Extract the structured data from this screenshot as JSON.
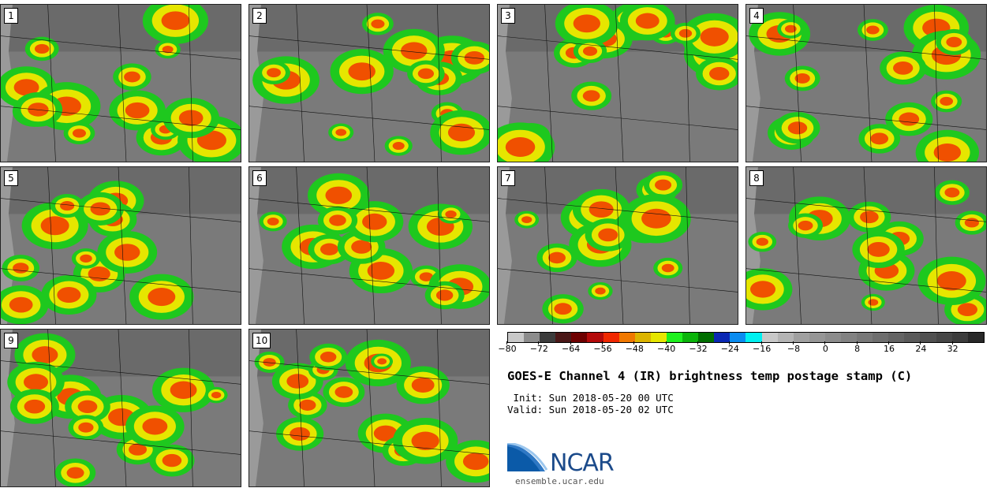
{
  "panels": [
    {
      "label": "1"
    },
    {
      "label": "2"
    },
    {
      "label": "3"
    },
    {
      "label": "4"
    },
    {
      "label": "5"
    },
    {
      "label": "6"
    },
    {
      "label": "7"
    },
    {
      "label": "8"
    },
    {
      "label": "9"
    },
    {
      "label": "10"
    }
  ],
  "colorbar": {
    "colors": [
      "#c8c8c8",
      "#8c8c8c",
      "#3c3c3c",
      "#4a1818",
      "#6e0000",
      "#b40a0a",
      "#f02800",
      "#f07800",
      "#dcb400",
      "#e6e600",
      "#1ef01e",
      "#0ab40a",
      "#006e00",
      "#0a28b4",
      "#0a8cf0",
      "#00f0f0",
      "#c8c8c8",
      "#b4b4b4",
      "#a0a0a0",
      "#969696",
      "#8c8c8c",
      "#828282",
      "#787878",
      "#6e6e6e",
      "#646464",
      "#5a5a5a",
      "#505050",
      "#464646",
      "#3c3c3c",
      "#282828"
    ],
    "min": -80,
    "max": 40,
    "ticks": [
      "−80",
      "−72",
      "−64",
      "−56",
      "−48",
      "−40",
      "−32",
      "−24",
      "−16",
      "−8",
      "0",
      "8",
      "16",
      "24",
      "32"
    ]
  },
  "title": "GOES-E Channel 4 (IR) brightness temp postage stamp (C)",
  "init_line": " Init: Sun 2018-05-20 00 UTC",
  "valid_line": "Valid: Sun 2018-05-20 02 UTC",
  "logo": {
    "text": "NCAR",
    "color": "#1b4a8a"
  },
  "site": "ensemble.ucar.edu"
}
